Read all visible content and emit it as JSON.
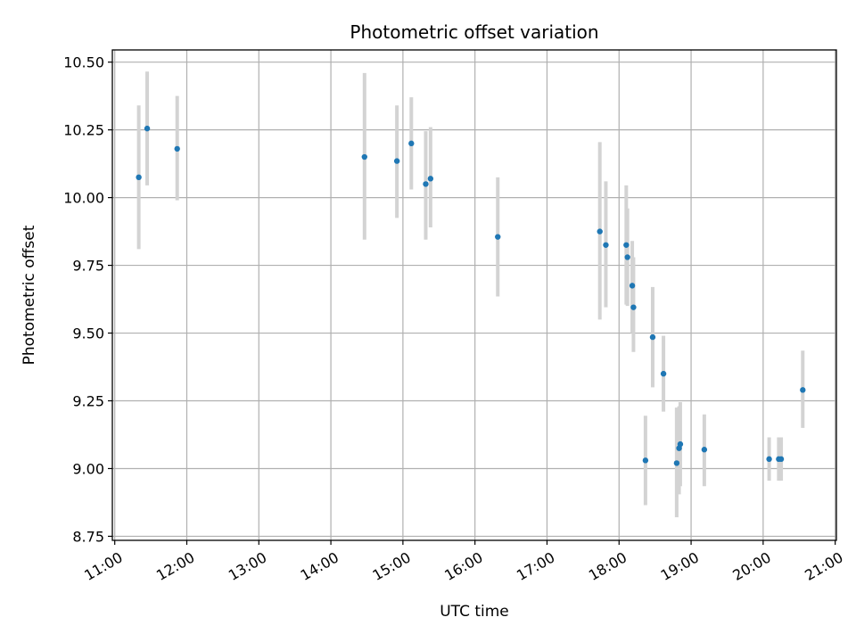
{
  "chart_data": {
    "type": "scatter",
    "title": "Photometric offset variation",
    "xlabel": "UTC time",
    "ylabel": "Photometric offset",
    "xlim": [
      "10:58",
      "21:01"
    ],
    "ylim": [
      8.735,
      10.545
    ],
    "grid": true,
    "x_ticks": [
      "11:00",
      "12:00",
      "13:00",
      "14:00",
      "15:00",
      "16:00",
      "17:00",
      "18:00",
      "19:00",
      "20:00",
      "21:00"
    ],
    "y_ticks": [
      "8.75",
      "9.00",
      "9.25",
      "9.50",
      "9.75",
      "10.00",
      "10.25",
      "10.50"
    ],
    "point_color": "#1f77b4",
    "errorbar_color": "#d3d3d3",
    "series": [
      {
        "points": [
          {
            "x": "11:20",
            "y": 10.075,
            "ylow": 9.81,
            "yhigh": 10.34
          },
          {
            "x": "11:27",
            "y": 10.255,
            "ylow": 10.045,
            "yhigh": 10.465
          },
          {
            "x": "11:52",
            "y": 10.18,
            "ylow": 9.99,
            "yhigh": 10.375
          },
          {
            "x": "14:28",
            "y": 10.15,
            "ylow": 9.845,
            "yhigh": 10.46
          },
          {
            "x": "14:55",
            "y": 10.135,
            "ylow": 9.925,
            "yhigh": 10.34
          },
          {
            "x": "15:07",
            "y": 10.2,
            "ylow": 10.03,
            "yhigh": 10.37
          },
          {
            "x": "15:19",
            "y": 10.05,
            "ylow": 9.845,
            "yhigh": 10.245
          },
          {
            "x": "15:23",
            "y": 10.07,
            "ylow": 9.89,
            "yhigh": 10.26
          },
          {
            "x": "16:19",
            "y": 9.855,
            "ylow": 9.635,
            "yhigh": 10.075
          },
          {
            "x": "17:44",
            "y": 9.875,
            "ylow": 9.55,
            "yhigh": 10.205
          },
          {
            "x": "17:49",
            "y": 9.825,
            "ylow": 9.595,
            "yhigh": 10.06
          },
          {
            "x": "18:06",
            "y": 9.825,
            "ylow": 9.605,
            "yhigh": 10.045
          },
          {
            "x": "18:07",
            "y": 9.78,
            "ylow": 9.6,
            "yhigh": 9.96
          },
          {
            "x": "18:11",
            "y": 9.675,
            "ylow": 9.5,
            "yhigh": 9.84
          },
          {
            "x": "18:12",
            "y": 9.595,
            "ylow": 9.43,
            "yhigh": 9.78
          },
          {
            "x": "18:22",
            "y": 9.03,
            "ylow": 8.865,
            "yhigh": 9.195
          },
          {
            "x": "18:28",
            "y": 9.485,
            "ylow": 9.3,
            "yhigh": 9.67
          },
          {
            "x": "18:37",
            "y": 9.35,
            "ylow": 9.21,
            "yhigh": 9.49
          },
          {
            "x": "18:48",
            "y": 9.02,
            "ylow": 8.82,
            "yhigh": 9.225
          },
          {
            "x": "18:50",
            "y": 9.075,
            "ylow": 8.905,
            "yhigh": 9.23
          },
          {
            "x": "18:51",
            "y": 9.09,
            "ylow": 8.935,
            "yhigh": 9.245
          },
          {
            "x": "19:11",
            "y": 9.07,
            "ylow": 8.935,
            "yhigh": 9.2
          },
          {
            "x": "20:05",
            "y": 9.035,
            "ylow": 8.955,
            "yhigh": 9.115
          },
          {
            "x": "20:13",
            "y": 9.035,
            "ylow": 8.955,
            "yhigh": 9.115
          },
          {
            "x": "20:15",
            "y": 9.035,
            "ylow": 8.955,
            "yhigh": 9.115
          },
          {
            "x": "20:33",
            "y": 9.29,
            "ylow": 9.15,
            "yhigh": 9.435
          }
        ]
      }
    ]
  }
}
